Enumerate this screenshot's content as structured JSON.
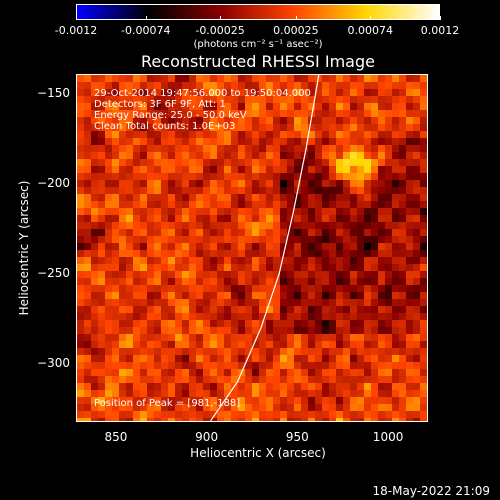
{
  "chart_data": {
    "type": "heatmap",
    "title": "Reconstructed RHESSI Image",
    "xlabel": "Heliocentric X (arcsec)",
    "ylabel": "Heliocentric Y (arcsec)",
    "x_ticks": [
      "850",
      "900",
      "950",
      "1000"
    ],
    "y_ticks": [
      "-150",
      "-200",
      "-250",
      "-300"
    ],
    "xlim": [
      828,
      1022
    ],
    "ylim": [
      -332,
      -139
    ],
    "colorbar": {
      "ticks": [
        "-0.0012",
        "-0.00074",
        "-0.00025",
        "0.00025",
        "0.00074",
        "0.0012"
      ],
      "tick_values": [
        -0.0012,
        -0.00074,
        -0.00025,
        0.00025,
        0.00074,
        0.0012
      ],
      "units": "(photons cm⁻² s⁻¹ asec⁻²)",
      "range": [
        -0.0012,
        0.0012
      ],
      "colors": [
        "#0000ff",
        "#000000",
        "#8b0000",
        "#ff4500",
        "#ffd700",
        "#ffffff"
      ]
    },
    "peak": {
      "x": 981,
      "y": -188
    },
    "limb_curve": [
      [
        902,
        -332
      ],
      [
        917,
        -310
      ],
      [
        930,
        -280
      ],
      [
        940,
        -250
      ],
      [
        948,
        -215
      ],
      [
        955,
        -180
      ],
      [
        962,
        -139
      ]
    ],
    "annotations": {
      "time": "29-Oct-2014 19:47:56.000 to 19:50:04.000",
      "detectors": "Detectors: 3F 6F 9F, Att: 1",
      "energy": "Energy Range: 25.0 - 50.0 keV",
      "clean": "Clean     Total counts: 1.0E+03",
      "peak_text": "Position of Peak = [981,-188]"
    }
  },
  "footer": {
    "date": "18-May-2022 21:09"
  }
}
